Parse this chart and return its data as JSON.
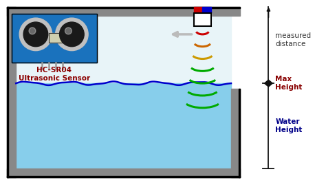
{
  "bg_color": "#ffffff",
  "tank_water_color": "#87ceeb",
  "water_line_color": "#0000cc",
  "sensor_label": "HC-SR04\nUltrasonic Sensor",
  "sensor_label_color": "#8B0000",
  "text_measured": "measured\ndistance",
  "text_max": "Max\nHeight",
  "text_water": "Water\nHeight",
  "text_color": "#333333",
  "arc_colors": [
    "#cc0000",
    "#cc6600",
    "#cc9900",
    "#00aa00",
    "#00aa00",
    "#00aa00",
    "#00aa00"
  ],
  "sensor_top_red": "#cc0000",
  "sensor_top_blue": "#0000cc",
  "tank_wall_color": "#888888"
}
